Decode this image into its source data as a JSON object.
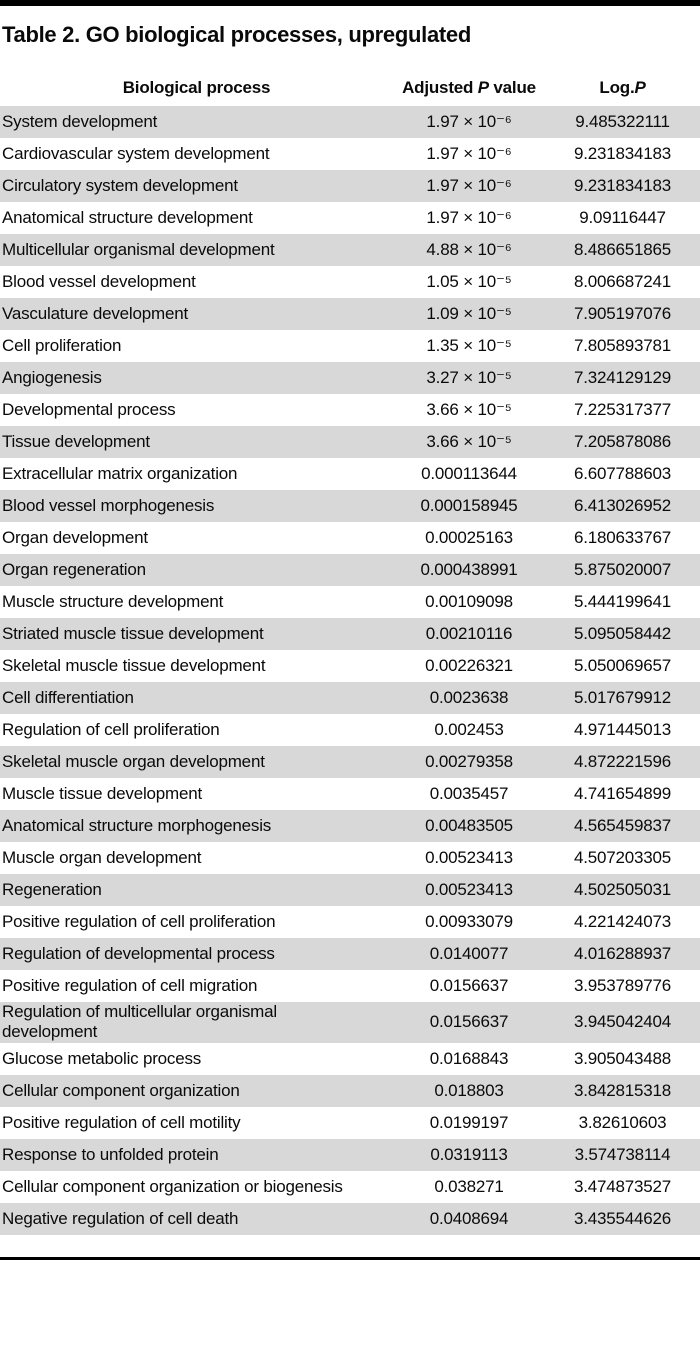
{
  "title": "Table 2. GO biological processes, upregulated",
  "colors": {
    "stripe": "#d8d8d8",
    "rule": "#000000"
  },
  "table": {
    "headers": {
      "process": "Biological process",
      "p_value": {
        "pre": "Adjusted ",
        "italic": "P",
        "post": " value"
      },
      "log_p": {
        "pre": "Log.",
        "italic": "P",
        "post": ""
      }
    },
    "rows": [
      {
        "process": "System development",
        "p_value": "1.97 × 10⁻⁶",
        "log_p": "9.485322111"
      },
      {
        "process": "Cardiovascular system development",
        "p_value": "1.97 × 10⁻⁶",
        "log_p": "9.231834183"
      },
      {
        "process": "Circulatory system development",
        "p_value": "1.97 × 10⁻⁶",
        "log_p": "9.231834183"
      },
      {
        "process": "Anatomical structure development",
        "p_value": "1.97 × 10⁻⁶",
        "log_p": "9.09116447"
      },
      {
        "process": "Multicellular organismal development",
        "p_value": "4.88 × 10⁻⁶",
        "log_p": "8.486651865"
      },
      {
        "process": "Blood vessel development",
        "p_value": "1.05 × 10⁻⁵",
        "log_p": "8.006687241"
      },
      {
        "process": "Vasculature development",
        "p_value": "1.09 × 10⁻⁵",
        "log_p": "7.905197076"
      },
      {
        "process": "Cell proliferation",
        "p_value": "1.35 × 10⁻⁵",
        "log_p": "7.805893781"
      },
      {
        "process": "Angiogenesis",
        "p_value": "3.27 × 10⁻⁵",
        "log_p": "7.324129129"
      },
      {
        "process": "Developmental process",
        "p_value": "3.66 × 10⁻⁵",
        "log_p": "7.225317377"
      },
      {
        "process": "Tissue development",
        "p_value": "3.66 × 10⁻⁵",
        "log_p": "7.205878086"
      },
      {
        "process": "Extracellular matrix organization",
        "p_value": "0.000113644",
        "log_p": "6.607788603"
      },
      {
        "process": "Blood vessel morphogenesis",
        "p_value": "0.000158945",
        "log_p": "6.413026952"
      },
      {
        "process": "Organ development",
        "p_value": "0.00025163",
        "log_p": "6.180633767"
      },
      {
        "process": "Organ regeneration",
        "p_value": "0.000438991",
        "log_p": "5.875020007"
      },
      {
        "process": "Muscle structure development",
        "p_value": "0.00109098",
        "log_p": "5.444199641"
      },
      {
        "process": "Striated muscle tissue development",
        "p_value": "0.00210116",
        "log_p": "5.095058442"
      },
      {
        "process": "Skeletal muscle tissue development",
        "p_value": "0.00226321",
        "log_p": "5.050069657"
      },
      {
        "process": "Cell differentiation",
        "p_value": "0.0023638",
        "log_p": "5.017679912"
      },
      {
        "process": "Regulation of cell proliferation",
        "p_value": "0.002453",
        "log_p": "4.971445013"
      },
      {
        "process": "Skeletal muscle organ development",
        "p_value": "0.00279358",
        "log_p": "4.872221596"
      },
      {
        "process": "Muscle tissue development",
        "p_value": "0.0035457",
        "log_p": "4.741654899"
      },
      {
        "process": "Anatomical structure morphogenesis",
        "p_value": "0.00483505",
        "log_p": "4.565459837"
      },
      {
        "process": "Muscle organ development",
        "p_value": "0.00523413",
        "log_p": "4.507203305"
      },
      {
        "process": "Regeneration",
        "p_value": "0.00523413",
        "log_p": "4.502505031"
      },
      {
        "process": "Positive regulation of cell proliferation",
        "p_value": "0.00933079",
        "log_p": "4.221424073"
      },
      {
        "process": "Regulation of developmental process",
        "p_value": "0.0140077",
        "log_p": "4.016288937"
      },
      {
        "process": "Positive regulation of cell migration",
        "p_value": "0.0156637",
        "log_p": "3.953789776"
      },
      {
        "process": "Regulation of multicellular organismal\ndevelopment",
        "p_value": "0.0156637",
        "log_p": "3.945042404"
      },
      {
        "process": "Glucose metabolic process",
        "p_value": "0.0168843",
        "log_p": "3.905043488"
      },
      {
        "process": "Cellular component organization",
        "p_value": "0.018803",
        "log_p": "3.842815318"
      },
      {
        "process": "Positive regulation of cell motility",
        "p_value": "0.0199197",
        "log_p": "3.82610603"
      },
      {
        "process": "Response to unfolded protein",
        "p_value": "0.0319113",
        "log_p": "3.574738114"
      },
      {
        "process": "Cellular component organization or biogenesis",
        "p_value": "0.038271",
        "log_p": "3.474873527"
      },
      {
        "process": "Negative regulation of cell death",
        "p_value": "0.0408694",
        "log_p": "3.435544626"
      }
    ]
  }
}
